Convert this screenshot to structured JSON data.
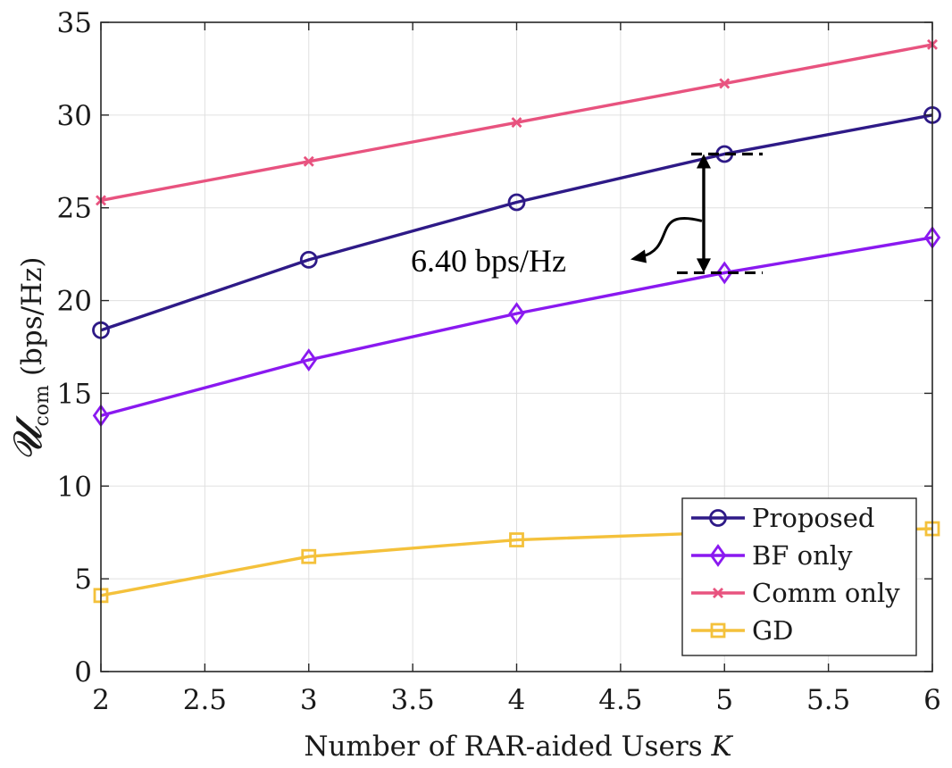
{
  "chart_data": {
    "type": "line",
    "x": [
      2,
      3,
      4,
      5,
      6
    ],
    "xlim": [
      2,
      6
    ],
    "ylim": [
      0,
      35
    ],
    "xticks": [
      2,
      2.5,
      3,
      3.5,
      4,
      4.5,
      5,
      5.5,
      6
    ],
    "xtick_labels": [
      "2",
      "2.5",
      "3",
      "3.5",
      "4",
      "4.5",
      "5",
      "5.5",
      "6"
    ],
    "yticks": [
      0,
      5,
      10,
      15,
      20,
      25,
      30,
      35
    ],
    "ytick_labels": [
      "0",
      "5",
      "10",
      "15",
      "20",
      "25",
      "30",
      "35"
    ],
    "xlabel": "Number of RAR-aided Users K",
    "ylabel_symbol": "𝓤",
    "ylabel_subscript": "com",
    "ylabel_unit": "(bps/Hz)",
    "grid": true,
    "legend_position": "bottom-right",
    "series": [
      {
        "name": "Proposed",
        "values": [
          18.4,
          22.2,
          25.3,
          27.9,
          30.0
        ],
        "color": "#2e1a87",
        "marker": "circle"
      },
      {
        "name": "BF only",
        "values": [
          13.8,
          16.8,
          19.3,
          21.5,
          23.4
        ],
        "color": "#8a19f0",
        "marker": "diamond"
      },
      {
        "name": "Comm only",
        "values": [
          25.4,
          27.5,
          29.6,
          31.7,
          33.8
        ],
        "color": "#e8537f",
        "marker": "x"
      },
      {
        "name": "GD",
        "values": [
          4.1,
          6.2,
          7.1,
          7.5,
          7.7
        ],
        "color": "#f4c13b",
        "marker": "square"
      }
    ],
    "annotation": {
      "text": "6.40 bps/Hz",
      "x": 4.9,
      "y_top": 27.9,
      "y_bottom": 21.5
    }
  }
}
